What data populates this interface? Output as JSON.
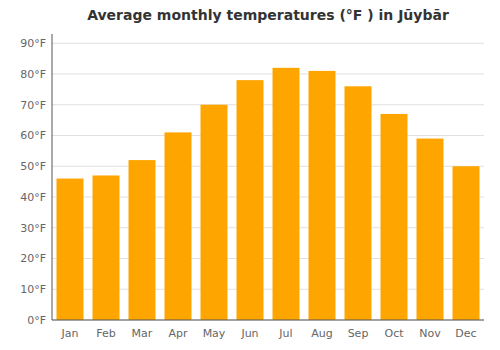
{
  "chart_data": {
    "type": "bar",
    "title": "Average monthly temperatures (°F ) in Jūybār",
    "categories": [
      "Jan",
      "Feb",
      "Mar",
      "Apr",
      "May",
      "Jun",
      "Jul",
      "Aug",
      "Sep",
      "Oct",
      "Nov",
      "Dec"
    ],
    "values": [
      46,
      47,
      52,
      61,
      70,
      78,
      82,
      81,
      76,
      67,
      59,
      50
    ],
    "color": "#FFA500",
    "ylim": [
      0,
      93
    ],
    "yticks": [
      {
        "value": 0,
        "label": "0°F"
      },
      {
        "value": 10,
        "label": "10°F"
      },
      {
        "value": 20,
        "label": "20°F"
      },
      {
        "value": 30,
        "label": "30°F"
      },
      {
        "value": 40,
        "label": "40°F"
      },
      {
        "value": 50,
        "label": "50°F"
      },
      {
        "value": 60,
        "label": "60°F"
      },
      {
        "value": 70,
        "label": "70°F"
      },
      {
        "value": 80,
        "label": "80°F"
      },
      {
        "value": 90,
        "label": "90°F"
      }
    ],
    "grid": true
  }
}
